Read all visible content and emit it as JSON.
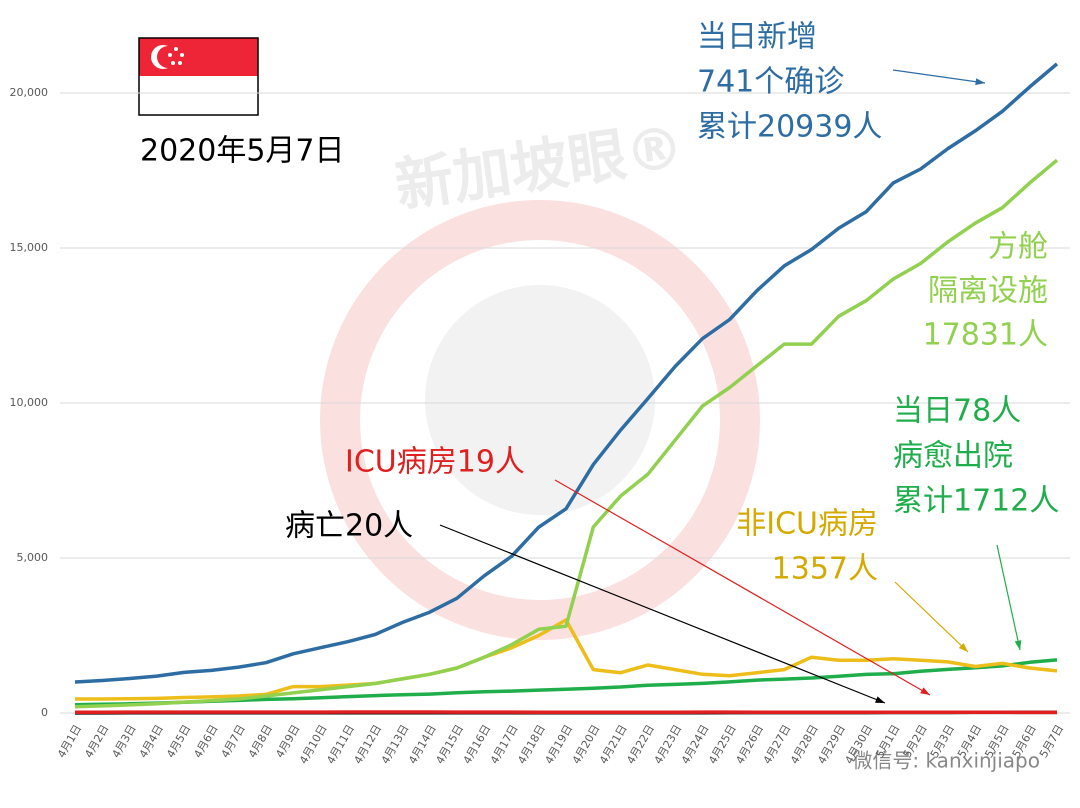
{
  "chart_data": {
    "type": "line",
    "date_label": "2020年5月7日",
    "watermark": "新加坡眼®",
    "wechat": "微信号: kanxinjiapo",
    "categories": [
      "4月1日",
      "4月2日",
      "4月3日",
      "4月4日",
      "4月5日",
      "4月6日",
      "4月7日",
      "4月8日",
      "4月9日",
      "4月10日",
      "4月11日",
      "4月12日",
      "4月13日",
      "4月14日",
      "4月15日",
      "4月16日",
      "4月17日",
      "4月18日",
      "4月19日",
      "4月20日",
      "4月21日",
      "4月22日",
      "4月23日",
      "4月24日",
      "4月25日",
      "4月26日",
      "4月27日",
      "4月28日",
      "4月29日",
      "4月30日",
      "5月1日",
      "5月2日",
      "5月3日",
      "5月4日",
      "5月5日",
      "5月6日",
      "5月7日"
    ],
    "series": [
      {
        "color": "#2e6da4",
        "values": [
          1000,
          1049,
          1114,
          1189,
          1309,
          1375,
          1481,
          1623,
          1910,
          2108,
          2299,
          2532,
          2918,
          3252,
          3699,
          4427,
          5050,
          5992,
          6588,
          8014,
          9125,
          10141,
          11178,
          12075,
          12693,
          13624,
          14423,
          14951,
          15641,
          16169,
          17101,
          17548,
          18205,
          18778,
          19410,
          20198,
          20939
        ]
      },
      {
        "color": "#92d050",
        "values": [
          200,
          230,
          260,
          300,
          350,
          400,
          450,
          550,
          650,
          750,
          850,
          950,
          1100,
          1250,
          1450,
          1800,
          2200,
          2700,
          2800,
          6000,
          7000,
          7700,
          8800,
          9900,
          10500,
          11200,
          11900,
          11900,
          12800,
          13300,
          14000,
          14500,
          15200,
          15800,
          16300,
          17100,
          17831
        ]
      },
      {
        "color": "#edbd1a",
        "values": [
          450,
          450,
          460,
          470,
          500,
          520,
          550,
          600,
          850,
          850,
          900,
          950,
          1100,
          1250,
          1450,
          1800,
          2100,
          2500,
          3000,
          1400,
          1300,
          1550,
          1400,
          1250,
          1200,
          1300,
          1400,
          1800,
          1700,
          1700,
          1750,
          1700,
          1650,
          1500,
          1600,
          1450,
          1357
        ]
      },
      {
        "color": "#1fae4b",
        "values": [
          266,
          282,
          297,
          320,
          344,
          377,
          406,
          440,
          460,
          492,
          528,
          560,
          586,
          611,
          652,
          683,
          708,
          740,
          768,
          801,
          839,
          896,
          924,
          956,
          1002,
          1060,
          1095,
          1128,
          1188,
          1244,
          1268,
          1347,
          1408,
          1457,
          1519,
          1634,
          1712
        ]
      },
      {
        "color": "#e02020",
        "values": [
          25,
          26,
          29,
          30,
          30,
          29,
          29,
          29,
          28,
          29,
          31,
          31,
          32,
          31,
          29,
          29,
          28,
          25,
          24,
          22,
          22,
          23,
          26,
          28,
          29,
          25,
          24,
          25,
          26,
          24,
          25,
          24,
          23,
          22,
          21,
          19,
          19
        ]
      },
      {
        "color": "#000000",
        "values": [
          3,
          4,
          5,
          6,
          6,
          6,
          6,
          6,
          6,
          7,
          7,
          8,
          8,
          8,
          10,
          10,
          11,
          11,
          11,
          11,
          11,
          11,
          11,
          11,
          12,
          12,
          14,
          14,
          14,
          14,
          15,
          16,
          17,
          18,
          18,
          18,
          20
        ]
      }
    ],
    "annotations": [
      {
        "lines": [
          "当日新增",
          "741个确诊",
          "累计20939人"
        ],
        "color": "#2e6da4"
      },
      {
        "lines": [
          "方舱",
          "隔离设施",
          "17831人"
        ],
        "color": "#92d050"
      },
      {
        "lines": [
          "当日78人",
          "病愈出院",
          "累计1712人"
        ],
        "color": "#1fae4b"
      },
      {
        "lines": [
          "非ICU病房",
          "1357人"
        ],
        "color": "#d4a900"
      },
      {
        "lines": [
          "ICU病房19人"
        ],
        "color": "#e02020"
      },
      {
        "lines": [
          "病亡20人"
        ],
        "color": "#000000"
      }
    ],
    "ylim": [
      0,
      22000
    ],
    "yticks": [
      0,
      {
        "value": 5000,
        "label": "5,000"
      },
      {
        "value": 10000,
        "label": "10,000"
      },
      {
        "value": 15000,
        "label": "15,000"
      },
      {
        "value": 20000,
        "label": "20,000"
      }
    ],
    "grid": true
  }
}
